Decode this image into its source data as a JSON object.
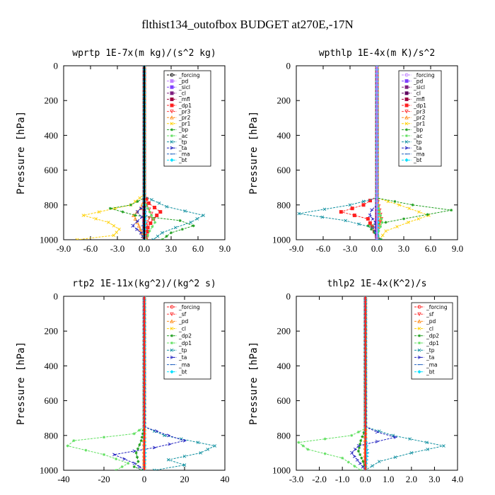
{
  "figure_title": "flthist134_outofbox  BUDGET at270E,-17N",
  "chart_data": [
    {
      "type": "line",
      "title": "wprtp  1E-7x(m kg)/(s^2 kg)",
      "xlabel": "",
      "ylabel": "Pressure [hPa]",
      "xlim": [
        -9.0,
        9.0
      ],
      "ylim": [
        1000,
        0
      ],
      "xticks": [
        -9.0,
        -6.0,
        -3.0,
        0.0,
        3.0,
        6.0,
        9.0
      ],
      "xtick_labels": [
        "-9.0",
        "-6.0",
        "-3.0",
        "0.0",
        "3.0",
        "6.0",
        "9.0"
      ],
      "yticks": [
        0,
        200,
        400,
        600,
        800,
        1000
      ],
      "legend_position": "top-right",
      "series": [
        {
          "name": "_forcing",
          "color": "#000000",
          "marker": "o",
          "x": [
            0,
            0,
            0,
            0,
            0,
            0,
            0,
            0
          ],
          "y": [
            0,
            150,
            300,
            450,
            600,
            750,
            900,
            1000
          ]
        },
        {
          "name": "_pd",
          "color": "#c080ff",
          "marker": "s",
          "x": [
            0,
            0,
            0,
            0
          ],
          "y": [
            0,
            400,
            800,
            1000
          ]
        },
        {
          "name": "_sicl",
          "color": "#8040ff",
          "marker": "s",
          "x": [
            0,
            0,
            0,
            0
          ],
          "y": [
            0,
            400,
            800,
            1000
          ]
        },
        {
          "name": "_cl",
          "color": "#802080",
          "marker": "s",
          "x": [
            0,
            0,
            0,
            0
          ],
          "y": [
            0,
            400,
            800,
            1000
          ]
        },
        {
          "name": "_mfl",
          "color": "#a00040",
          "marker": "s",
          "x": [
            0,
            0,
            0,
            0
          ],
          "y": [
            0,
            400,
            800,
            1000
          ]
        },
        {
          "name": "_dp1",
          "color": "#ff2020",
          "marker": "s",
          "x": [
            0,
            0,
            0.5,
            1.8,
            1.0,
            0.4,
            0.2
          ],
          "y": [
            0,
            740,
            790,
            840,
            880,
            930,
            1000
          ]
        },
        {
          "name": "_pr3",
          "color": "#ff4040",
          "marker": "v",
          "x": [
            0,
            0,
            0.3,
            0.8,
            0.3,
            0
          ],
          "y": [
            0,
            760,
            800,
            850,
            900,
            1000
          ]
        },
        {
          "name": "_pr2",
          "color": "#ff9020",
          "marker": "^",
          "x": [
            0,
            0,
            -0.4,
            -1.2,
            -0.6,
            0
          ],
          "y": [
            0,
            770,
            820,
            860,
            920,
            1000
          ]
        },
        {
          "name": "_pr1",
          "color": "#ffd000",
          "marker": "x",
          "x": [
            0,
            0,
            -1.5,
            -6.8,
            -4.0,
            -2.8,
            -3.4,
            -7.5
          ],
          "y": [
            0,
            740,
            800,
            860,
            900,
            940,
            975,
            1000
          ]
        },
        {
          "name": "_bp",
          "color": "#20a020",
          "marker": "*",
          "x": [
            0,
            0,
            -1.5,
            -3.8,
            -1.0,
            4.0,
            5.5,
            3.0,
            2.0
          ],
          "y": [
            0,
            760,
            800,
            820,
            860,
            890,
            920,
            960,
            1000
          ]
        },
        {
          "name": "_ac",
          "color": "#60e060",
          "marker": "*",
          "x": [
            0,
            0,
            0.6,
            1.2,
            0.6,
            0.2
          ],
          "y": [
            0,
            780,
            840,
            900,
            950,
            1000
          ]
        },
        {
          "name": "_tp",
          "color": "#1090a0",
          "marker": "x",
          "x": [
            0,
            0,
            2.5,
            6.6,
            5.2,
            3.5,
            2.0,
            1.0
          ],
          "y": [
            0,
            750,
            810,
            860,
            900,
            930,
            960,
            1000
          ]
        },
        {
          "name": "_ta",
          "color": "#2020c0",
          "marker": ">",
          "x": [
            0,
            0,
            -0.8,
            -0.3,
            -1.3,
            -0.4,
            0
          ],
          "y": [
            0,
            800,
            840,
            870,
            920,
            960,
            1000
          ]
        },
        {
          "name": "_ma",
          "color": "#2060c0",
          "marker": "-",
          "x": [
            0,
            0,
            0.2,
            -0.2,
            0
          ],
          "y": [
            0,
            800,
            860,
            920,
            1000
          ]
        },
        {
          "name": "_bt",
          "color": "#00e0ff",
          "marker": "D",
          "x": [
            0,
            0,
            0.1,
            0
          ],
          "y": [
            0,
            800,
            900,
            1000
          ]
        }
      ]
    },
    {
      "type": "line",
      "title": "wpthlp  1E-4x(m K)/s^2",
      "xlabel": "",
      "ylabel": "Pressure [hPa]",
      "xlim": [
        -9.0,
        9.0
      ],
      "ylim": [
        1000,
        0
      ],
      "xticks": [
        -9.0,
        -6.0,
        -3.0,
        0.0,
        3.0,
        6.0,
        9.0
      ],
      "xtick_labels": [
        "-9.0",
        "-6.0",
        "-3.0",
        "0.0",
        "3.0",
        "6.0",
        "9.0"
      ],
      "yticks": [
        0,
        200,
        400,
        600,
        800,
        1000
      ],
      "legend_position": "top-right",
      "series": [
        {
          "name": "_forcing",
          "color": "#c080ff",
          "marker": "o",
          "x": [
            0,
            0,
            0,
            0,
            0,
            0
          ],
          "y": [
            0,
            200,
            400,
            600,
            800,
            1000
          ]
        },
        {
          "name": "_pd",
          "color": "#8040ff",
          "marker": "s",
          "x": [
            0,
            0,
            0,
            0
          ],
          "y": [
            0,
            400,
            800,
            1000
          ]
        },
        {
          "name": "_sicl",
          "color": "#802080",
          "marker": "s",
          "x": [
            0,
            0,
            0,
            0
          ],
          "y": [
            0,
            400,
            800,
            1000
          ]
        },
        {
          "name": "_cl",
          "color": "#600060",
          "marker": "s",
          "x": [
            0,
            0,
            0,
            0
          ],
          "y": [
            0,
            400,
            800,
            1000
          ]
        },
        {
          "name": "_mfl",
          "color": "#a00040",
          "marker": "s",
          "x": [
            0,
            0,
            0,
            0
          ],
          "y": [
            0,
            400,
            800,
            1000
          ]
        },
        {
          "name": "_dp1",
          "color": "#ff2020",
          "marker": "s",
          "x": [
            0,
            0,
            -1.5,
            -4.0,
            -1.0,
            0.2
          ],
          "y": [
            0,
            750,
            800,
            840,
            880,
            1000
          ]
        },
        {
          "name": "_pr3",
          "color": "#ff4040",
          "marker": "v",
          "x": [
            0,
            0,
            0.3,
            0.5,
            0.2,
            0
          ],
          "y": [
            0,
            760,
            830,
            880,
            920,
            1000
          ]
        },
        {
          "name": "_pr2",
          "color": "#ff9020",
          "marker": "^",
          "x": [
            0,
            0,
            0.2,
            0.4,
            0.1,
            0
          ],
          "y": [
            0,
            760,
            840,
            880,
            930,
            1000
          ]
        },
        {
          "name": "_pr1",
          "color": "#ffd000",
          "marker": "x",
          "x": [
            0,
            0,
            2.5,
            5.8,
            3.5,
            1.0,
            0.3
          ],
          "y": [
            0,
            760,
            800,
            860,
            900,
            950,
            1000
          ]
        },
        {
          "name": "_bp",
          "color": "#20a020",
          "marker": "*",
          "x": [
            0,
            0,
            4.0,
            8.3,
            3.0,
            -1.0,
            0.5
          ],
          "y": [
            0,
            760,
            800,
            830,
            880,
            920,
            1000
          ]
        },
        {
          "name": "_ac",
          "color": "#60e060",
          "marker": "*",
          "x": [
            0,
            0,
            0.3,
            0.6,
            0.2,
            0
          ],
          "y": [
            0,
            780,
            840,
            900,
            950,
            1000
          ]
        },
        {
          "name": "_tp",
          "color": "#1090a0",
          "marker": "x",
          "x": [
            0,
            0,
            -3.0,
            -8.7,
            -3.5,
            -0.5,
            0.3
          ],
          "y": [
            0,
            760,
            800,
            850,
            890,
            930,
            1000
          ]
        },
        {
          "name": "_ta",
          "color": "#2020c0",
          "marker": ">",
          "x": [
            0,
            0,
            -0.6,
            -0.8,
            -0.2,
            0
          ],
          "y": [
            0,
            800,
            830,
            860,
            900,
            1000
          ]
        },
        {
          "name": "_ma",
          "color": "#2060c0",
          "marker": "-",
          "x": [
            0,
            0,
            0.1,
            0
          ],
          "y": [
            0,
            800,
            900,
            1000
          ]
        },
        {
          "name": "_bt",
          "color": "#00e0ff",
          "marker": "D",
          "x": [
            0,
            0,
            0.1,
            0
          ],
          "y": [
            0,
            800,
            900,
            1000
          ]
        }
      ]
    },
    {
      "type": "line",
      "title": "rtp2  1E-11x(kg^2)/(kg^2 s)",
      "xlabel": "",
      "ylabel": "Pressure [hPa]",
      "xlim": [
        -40,
        40
      ],
      "ylim": [
        1000,
        0
      ],
      "xticks": [
        -40,
        -20,
        0,
        20,
        40
      ],
      "xtick_labels": [
        "-40",
        "-20",
        "0",
        "20",
        "40"
      ],
      "yticks": [
        0,
        200,
        400,
        600,
        800,
        1000
      ],
      "legend_position": "top-right",
      "series": [
        {
          "name": "_forcing",
          "color": "#ff2020",
          "marker": "o",
          "x": [
            0,
            0,
            0,
            0,
            0,
            0,
            0,
            0
          ],
          "y": [
            0,
            150,
            300,
            450,
            600,
            750,
            900,
            1000
          ]
        },
        {
          "name": "_sf",
          "color": "#ff4040",
          "marker": "v",
          "x": [
            0,
            0,
            0,
            0
          ],
          "y": [
            0,
            400,
            800,
            1000
          ]
        },
        {
          "name": "_pd",
          "color": "#ff9020",
          "marker": "^",
          "x": [
            0,
            0,
            0,
            0
          ],
          "y": [
            0,
            400,
            800,
            1000
          ]
        },
        {
          "name": "_cl",
          "color": "#ffd000",
          "marker": "x",
          "x": [
            0,
            0,
            0,
            0
          ],
          "y": [
            0,
            400,
            800,
            1000
          ]
        },
        {
          "name": "_dp2",
          "color": "#20a020",
          "marker": "*",
          "x": [
            0,
            0,
            -1.5,
            -4.0,
            -3.0,
            -5.0,
            -1.0
          ],
          "y": [
            0,
            750,
            830,
            900,
            950,
            980,
            1000
          ]
        },
        {
          "name": "_dp1",
          "color": "#60e060",
          "marker": "*",
          "x": [
            0,
            0,
            -5,
            -35,
            -38,
            -20,
            -8,
            -14
          ],
          "y": [
            0,
            750,
            790,
            830,
            860,
            910,
            960,
            1000
          ]
        },
        {
          "name": "_tp",
          "color": "#1090a0",
          "marker": "x",
          "x": [
            0,
            0,
            10,
            35,
            28,
            12,
            20,
            5
          ],
          "y": [
            0,
            750,
            800,
            860,
            900,
            940,
            970,
            1000
          ]
        },
        {
          "name": "_ta",
          "color": "#2020c0",
          "marker": ">",
          "x": [
            0,
            0,
            12,
            20,
            5,
            -15,
            -5,
            0
          ],
          "y": [
            0,
            750,
            800,
            830,
            870,
            910,
            960,
            1000
          ]
        },
        {
          "name": "_ma",
          "color": "#2060c0",
          "marker": "-",
          "x": [
            0,
            0,
            0.5,
            0
          ],
          "y": [
            0,
            800,
            900,
            1000
          ]
        },
        {
          "name": "_bt",
          "color": "#00e0ff",
          "marker": "D",
          "x": [
            0,
            0,
            0.3,
            0
          ],
          "y": [
            0,
            800,
            900,
            1000
          ]
        }
      ]
    },
    {
      "type": "line",
      "title": "thlp2  1E-4x(K^2)/s",
      "xlabel": "",
      "ylabel": "Pressure [hPa]",
      "xlim": [
        -3.0,
        4.0
      ],
      "ylim": [
        1000,
        0
      ],
      "xticks": [
        -3.0,
        -2.0,
        -1.0,
        0.0,
        1.0,
        2.0,
        3.0,
        4.0
      ],
      "xtick_labels": [
        "-3.0",
        "-2.0",
        "-1.0",
        "0.0",
        "1.0",
        "2.0",
        "3.0",
        "4.0"
      ],
      "yticks": [
        0,
        200,
        400,
        600,
        800,
        1000
      ],
      "legend_position": "top-right",
      "series": [
        {
          "name": "_forcing",
          "color": "#ff2020",
          "marker": "o",
          "x": [
            0,
            0,
            0,
            0,
            0,
            0,
            0,
            0
          ],
          "y": [
            0,
            150,
            300,
            450,
            600,
            750,
            900,
            1000
          ]
        },
        {
          "name": "_sf",
          "color": "#ff4040",
          "marker": "v",
          "x": [
            0,
            0,
            0,
            0
          ],
          "y": [
            0,
            400,
            800,
            1000
          ]
        },
        {
          "name": "_pd",
          "color": "#ff9020",
          "marker": "^",
          "x": [
            0,
            0,
            0,
            0
          ],
          "y": [
            0,
            400,
            800,
            1000
          ]
        },
        {
          "name": "_cl",
          "color": "#ffd000",
          "marker": "x",
          "x": [
            0,
            0,
            0,
            0
          ],
          "y": [
            0,
            400,
            800,
            1000
          ]
        },
        {
          "name": "_dp2",
          "color": "#20a020",
          "marker": "*",
          "x": [
            0,
            0,
            -0.2,
            -0.3,
            -0.1,
            0
          ],
          "y": [
            0,
            760,
            830,
            890,
            950,
            1000
          ]
        },
        {
          "name": "_dp1",
          "color": "#60e060",
          "marker": "*",
          "x": [
            0,
            0,
            -0.6,
            -2.9,
            -2.5,
            -1.0,
            -0.2
          ],
          "y": [
            0,
            760,
            800,
            840,
            880,
            930,
            1000
          ]
        },
        {
          "name": "_tp",
          "color": "#1090a0",
          "marker": "x",
          "x": [
            0,
            0,
            1.2,
            3.4,
            2.0,
            0.6,
            0
          ],
          "y": [
            0,
            750,
            800,
            860,
            900,
            950,
            1000
          ]
        },
        {
          "name": "_ta",
          "color": "#2020c0",
          "marker": ">",
          "x": [
            0,
            0,
            0.5,
            1.3,
            -0.3,
            -0.6,
            0
          ],
          "y": [
            0,
            750,
            780,
            810,
            860,
            900,
            1000
          ]
        },
        {
          "name": "_ma",
          "color": "#2060c0",
          "marker": "-",
          "x": [
            0,
            0,
            0.1,
            0
          ],
          "y": [
            0,
            800,
            900,
            1000
          ]
        },
        {
          "name": "_bt",
          "color": "#00e0ff",
          "marker": "D",
          "x": [
            0,
            0,
            0.05,
            0
          ],
          "y": [
            0,
            800,
            900,
            1000
          ]
        }
      ]
    }
  ]
}
